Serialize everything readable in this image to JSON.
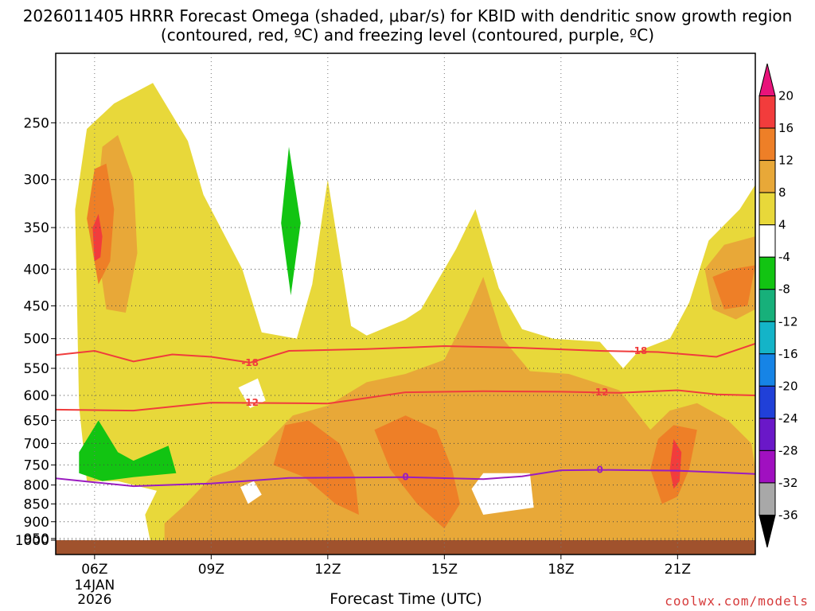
{
  "chart_data": {
    "type": "heatmap",
    "title": "2026011405 HRRR Forecast Omega (shaded, μbar/s) for KBID with dendritic snow growth region (contoured, red, ºC) and freezing level (contoured, purple, ºC)",
    "xlabel": "Forecast Time (UTC)",
    "ylabel": "",
    "x_ticks": [
      "06Z",
      "09Z",
      "12Z",
      "15Z",
      "18Z",
      "21Z"
    ],
    "x_date_label": [
      "14JAN",
      "2026"
    ],
    "x_hours": [
      6,
      9,
      12,
      15,
      18,
      21
    ],
    "xlim": [
      5,
      23
    ],
    "y_ticks": [
      250,
      300,
      350,
      400,
      450,
      500,
      550,
      600,
      650,
      700,
      750,
      800,
      850,
      900,
      950,
      1000
    ],
    "y_ticks_label": [
      "250",
      "300",
      "350",
      "400",
      "450",
      "500",
      "550",
      "600",
      "650",
      "700",
      "750",
      "800",
      "850",
      "900",
      "950",
      "1000"
    ],
    "ylim_hPa": [
      200,
      1000
    ],
    "colorbar": {
      "labels": [
        "20",
        "16",
        "12",
        "8",
        "4",
        "-4",
        "-8",
        "-12",
        "-16",
        "-20",
        "-24",
        "-28",
        "-32",
        "-36"
      ],
      "colors": [
        "#e8137a",
        "#f23c3c",
        "#ee7f27",
        "#e8a838",
        "#e8d83a",
        "#ffffff",
        "#12c412",
        "#17b07a",
        "#14b4c8",
        "#1684e6",
        "#2040d8",
        "#6a18c8",
        "#a010c0",
        "#a8a8a8",
        "#000000"
      ]
    },
    "contours": {
      "dgz_minus18": {
        "label": "-18",
        "color": "#f03c3c",
        "points": [
          [
            5.0,
            527
          ],
          [
            6.0,
            520
          ],
          [
            7.0,
            538
          ],
          [
            8.0,
            526
          ],
          [
            9.0,
            530
          ],
          [
            10.0,
            540
          ],
          [
            11.0,
            520
          ],
          [
            13.0,
            517
          ],
          [
            15.0,
            512
          ],
          [
            17.0,
            515
          ],
          [
            19.0,
            520
          ],
          [
            20.5,
            522
          ],
          [
            22.0,
            530
          ],
          [
            23.0,
            508
          ]
        ]
      },
      "dgz_minus12": {
        "label": "-12",
        "color": "#f03c3c",
        "points": [
          [
            5.0,
            628
          ],
          [
            7.0,
            630
          ],
          [
            9.0,
            614
          ],
          [
            11.0,
            615
          ],
          [
            12.0,
            616
          ],
          [
            13.0,
            605
          ],
          [
            14.0,
            594
          ],
          [
            16.0,
            592
          ],
          [
            18.0,
            593
          ],
          [
            19.5,
            595
          ],
          [
            21.0,
            590
          ],
          [
            22.0,
            598
          ],
          [
            23.0,
            600
          ]
        ]
      },
      "freezing_level": {
        "label": "0",
        "color": "#9a1cc0",
        "points": [
          [
            5.0,
            783
          ],
          [
            6.0,
            793
          ],
          [
            7.0,
            803
          ],
          [
            9.0,
            796
          ],
          [
            11.0,
            782
          ],
          [
            14.0,
            780
          ],
          [
            16.0,
            785
          ],
          [
            17.0,
            778
          ],
          [
            18.0,
            763
          ],
          [
            19.0,
            762
          ],
          [
            21.0,
            764
          ],
          [
            23.0,
            772
          ]
        ]
      }
    },
    "contour_labels": [
      {
        "text": "-18",
        "x": 10.0,
        "p": 540
      },
      {
        "text": "-18",
        "x": 20.0,
        "p": 520
      },
      {
        "text": "-12",
        "x": 10.0,
        "p": 614
      },
      {
        "text": "-12",
        "x": 19.0,
        "p": 594
      },
      {
        "text": "0",
        "x": 14.0,
        "p": 780
      },
      {
        "text": "0",
        "x": 19.0,
        "p": 762
      }
    ],
    "omega_regions": [
      {
        "level": "4 to 8",
        "color": "#e8d83a",
        "points": [
          [
            5.8,
            790
          ],
          [
            5.6,
            620
          ],
          [
            5.5,
            330
          ],
          [
            5.8,
            255
          ],
          [
            6.5,
            235
          ],
          [
            7.5,
            220
          ],
          [
            8.4,
            265
          ],
          [
            8.8,
            315
          ],
          [
            9.8,
            400
          ],
          [
            10.3,
            490
          ],
          [
            11.2,
            500
          ],
          [
            11.6,
            420
          ],
          [
            12.0,
            300
          ],
          [
            12.6,
            480
          ],
          [
            13.0,
            495
          ],
          [
            14.0,
            470
          ],
          [
            14.4,
            455
          ],
          [
            15.3,
            375
          ],
          [
            15.8,
            330
          ],
          [
            16.4,
            425
          ],
          [
            17.0,
            485
          ],
          [
            17.8,
            500
          ],
          [
            19.0,
            505
          ],
          [
            19.6,
            550
          ],
          [
            20.0,
            520
          ],
          [
            20.8,
            500
          ],
          [
            21.3,
            445
          ],
          [
            21.8,
            365
          ],
          [
            22.6,
            330
          ],
          [
            23.0,
            305
          ],
          [
            23.0,
            1000
          ],
          [
            17.0,
            1000
          ],
          [
            13.0,
            1000
          ],
          [
            9.0,
            1000
          ],
          [
            7.5,
            1000
          ],
          [
            7.3,
            880
          ],
          [
            7.6,
            815
          ],
          [
            6.6,
            790
          ]
        ]
      },
      {
        "level": "8 to 12",
        "color": "#e8a838",
        "points": [
          [
            6.0,
            350
          ],
          [
            6.2,
            270
          ],
          [
            6.6,
            260
          ],
          [
            7.0,
            300
          ],
          [
            7.1,
            380
          ],
          [
            6.8,
            460
          ],
          [
            6.3,
            455
          ]
        ]
      },
      {
        "level": "8 to 12",
        "color": "#e8a838",
        "points": [
          [
            7.8,
            1000
          ],
          [
            7.8,
            905
          ],
          [
            8.3,
            855
          ],
          [
            9.0,
            780
          ],
          [
            9.6,
            760
          ],
          [
            10.4,
            700
          ],
          [
            11.1,
            640
          ],
          [
            12.0,
            620
          ],
          [
            13.0,
            575
          ],
          [
            14.0,
            560
          ],
          [
            15.0,
            535
          ],
          [
            15.6,
            460
          ],
          [
            16.0,
            410
          ],
          [
            16.5,
            500
          ],
          [
            17.2,
            555
          ],
          [
            18.2,
            560
          ],
          [
            19.5,
            590
          ],
          [
            20.3,
            670
          ],
          [
            20.8,
            630
          ],
          [
            21.5,
            615
          ],
          [
            22.3,
            650
          ],
          [
            22.9,
            700
          ],
          [
            23.0,
            760
          ],
          [
            23.0,
            1000
          ],
          [
            20.0,
            1000
          ],
          [
            16.0,
            960
          ],
          [
            12.0,
            980
          ]
        ]
      },
      {
        "level": "8 to 12",
        "color": "#e8a838",
        "points": [
          [
            21.7,
            400
          ],
          [
            22.2,
            370
          ],
          [
            23.0,
            360
          ],
          [
            23.0,
            455
          ],
          [
            22.5,
            470
          ],
          [
            21.9,
            455
          ]
        ]
      },
      {
        "level": "12 to 16",
        "color": "#ee7f27",
        "points": [
          [
            5.8,
            340
          ],
          [
            6.0,
            290
          ],
          [
            6.3,
            285
          ],
          [
            6.5,
            330
          ],
          [
            6.4,
            390
          ],
          [
            6.1,
            420
          ]
        ]
      },
      {
        "level": "12 to 16",
        "color": "#ee7f27",
        "points": [
          [
            10.6,
            750
          ],
          [
            10.9,
            660
          ],
          [
            11.5,
            650
          ],
          [
            12.3,
            700
          ],
          [
            12.7,
            780
          ],
          [
            12.8,
            880
          ],
          [
            12.2,
            850
          ],
          [
            11.4,
            780
          ]
        ]
      },
      {
        "level": "12 to 16",
        "color": "#ee7f27",
        "points": [
          [
            13.2,
            670
          ],
          [
            14.0,
            640
          ],
          [
            14.8,
            670
          ],
          [
            15.2,
            760
          ],
          [
            15.4,
            850
          ],
          [
            15.0,
            920
          ],
          [
            14.3,
            850
          ],
          [
            13.6,
            760
          ]
        ]
      },
      {
        "level": "12 to 16",
        "color": "#ee7f27",
        "points": [
          [
            20.3,
            760
          ],
          [
            20.5,
            690
          ],
          [
            20.9,
            660
          ],
          [
            21.5,
            670
          ],
          [
            21.3,
            760
          ],
          [
            21.0,
            830
          ],
          [
            20.6,
            850
          ]
        ]
      },
      {
        "level": "12 to 16",
        "color": "#ee7f27",
        "points": [
          [
            21.9,
            410
          ],
          [
            22.4,
            400
          ],
          [
            23.0,
            395
          ],
          [
            22.8,
            450
          ],
          [
            22.2,
            455
          ]
        ]
      },
      {
        "level": "16 to 20",
        "color": "#f23c3c",
        "points": [
          [
            5.95,
            350
          ],
          [
            6.1,
            335
          ],
          [
            6.2,
            360
          ],
          [
            6.15,
            385
          ],
          [
            6.0,
            390
          ]
        ]
      },
      {
        "level": "16 to 20",
        "color": "#f23c3c",
        "points": [
          [
            20.8,
            760
          ],
          [
            20.9,
            690
          ],
          [
            21.1,
            720
          ],
          [
            21.05,
            790
          ],
          [
            20.9,
            810
          ]
        ]
      },
      {
        "level": "-4 to 4",
        "color": "#ffffff",
        "points": [
          [
            9.7,
            585
          ],
          [
            10.2,
            568
          ],
          [
            10.4,
            610
          ],
          [
            10.0,
            625
          ]
        ]
      },
      {
        "level": "-4 to 4",
        "color": "#ffffff",
        "points": [
          [
            9.75,
            805
          ],
          [
            10.1,
            790
          ],
          [
            10.3,
            825
          ],
          [
            9.95,
            850
          ]
        ]
      },
      {
        "level": "-4 to 4",
        "color": "#ffffff",
        "points": [
          [
            15.7,
            810
          ],
          [
            16.0,
            770
          ],
          [
            17.2,
            770
          ],
          [
            17.3,
            860
          ],
          [
            16.0,
            880
          ]
        ]
      },
      {
        "level": "-8 to -4",
        "color": "#12c412",
        "points": [
          [
            10.8,
            345
          ],
          [
            11.0,
            270
          ],
          [
            11.3,
            345
          ],
          [
            11.05,
            435
          ]
        ]
      },
      {
        "level": "-8 to -4",
        "color": "#12c412",
        "points": [
          [
            5.6,
            720
          ],
          [
            6.1,
            650
          ],
          [
            6.6,
            720
          ],
          [
            7.0,
            740
          ],
          [
            7.9,
            705
          ],
          [
            8.1,
            770
          ],
          [
            7.0,
            780
          ],
          [
            6.2,
            790
          ],
          [
            5.6,
            770
          ]
        ]
      }
    ],
    "ground": {
      "color": "#a0522d",
      "p_top": 1000
    },
    "grid": true
  }
}
